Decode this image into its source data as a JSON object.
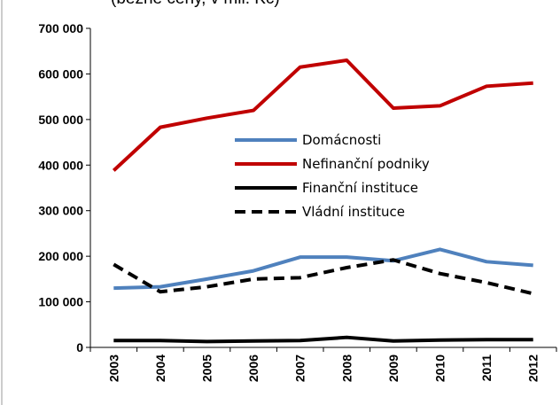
{
  "chart_data": {
    "type": "line",
    "subtitle": "(běžné ceny, v mil. Kč)",
    "categories": [
      "2003",
      "2004",
      "2005",
      "2006",
      "2007",
      "2008",
      "2009",
      "2010",
      "2011",
      "2012"
    ],
    "series": [
      {
        "name": "Domácnosti",
        "color": "#4f81bd",
        "dashed": false,
        "values": [
          130000,
          133000,
          150000,
          168000,
          198000,
          198000,
          190000,
          215000,
          188000,
          180000
        ]
      },
      {
        "name": "Nefinanční podniky",
        "color": "#c00000",
        "dashed": false,
        "values": [
          388000,
          483000,
          503000,
          520000,
          615000,
          630000,
          525000,
          530000,
          573000,
          580000
        ]
      },
      {
        "name": "Finanční instituce",
        "color": "#000000",
        "dashed": false,
        "values": [
          15000,
          15000,
          13000,
          14000,
          15000,
          22000,
          14000,
          16000,
          17000,
          17000
        ]
      },
      {
        "name": "Vládní instituce",
        "color": "#000000",
        "dashed": true,
        "values": [
          182000,
          122000,
          133000,
          150000,
          153000,
          175000,
          192000,
          162000,
          142000,
          118000
        ]
      }
    ],
    "ylim": [
      0,
      700000
    ],
    "yticks": [
      0,
      {
        "value": 100000,
        "label": "100 000"
      },
      {
        "value": 200000,
        "label": "200 000"
      },
      {
        "value": 300000,
        "label": "300 000"
      },
      {
        "value": 400000,
        "label": "400 000"
      },
      {
        "value": 500000,
        "label": "500 000"
      },
      {
        "value": 600000,
        "label": "600 000"
      },
      {
        "value": 700000,
        "label": "700 000"
      }
    ],
    "grid": false
  }
}
